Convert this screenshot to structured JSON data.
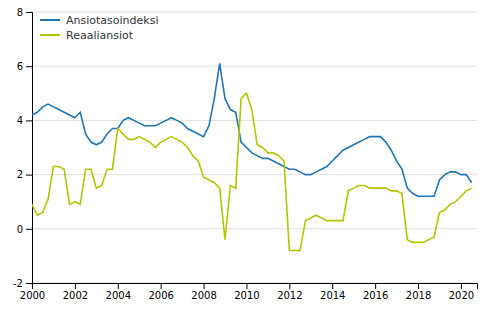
{
  "chart_data": {
    "type": "line",
    "x": [
      2000.0,
      2000.25,
      2000.5,
      2000.75,
      2001.0,
      2001.25,
      2001.5,
      2001.75,
      2002.0,
      2002.25,
      2002.5,
      2002.75,
      2003.0,
      2003.25,
      2003.5,
      2003.75,
      2004.0,
      2004.25,
      2004.5,
      2004.75,
      2005.0,
      2005.25,
      2005.5,
      2005.75,
      2006.0,
      2006.25,
      2006.5,
      2006.75,
      2007.0,
      2007.25,
      2007.5,
      2007.75,
      2008.0,
      2008.25,
      2008.5,
      2008.75,
      2009.0,
      2009.25,
      2009.5,
      2009.75,
      2010.0,
      2010.25,
      2010.5,
      2010.75,
      2011.0,
      2011.25,
      2011.5,
      2011.75,
      2012.0,
      2012.25,
      2012.5,
      2012.75,
      2013.0,
      2013.25,
      2013.5,
      2013.75,
      2014.0,
      2014.25,
      2014.5,
      2014.75,
      2015.0,
      2015.25,
      2015.5,
      2015.75,
      2016.0,
      2016.25,
      2016.5,
      2016.75,
      2017.0,
      2017.25,
      2017.5,
      2017.75,
      2018.0,
      2018.25,
      2018.5,
      2018.75,
      2019.0,
      2019.25,
      2019.5,
      2019.75,
      2020.0,
      2020.25,
      2020.5
    ],
    "series": [
      {
        "name": "Ansiotasoindeksi",
        "color": "#2175b5",
        "values": [
          4.2,
          4.3,
          4.5,
          4.6,
          4.5,
          4.4,
          4.3,
          4.2,
          4.1,
          4.3,
          3.5,
          3.2,
          3.1,
          3.2,
          3.5,
          3.7,
          3.7,
          4.0,
          4.1,
          4.0,
          3.9,
          3.8,
          3.8,
          3.8,
          3.9,
          4.0,
          4.1,
          4.0,
          3.9,
          3.7,
          3.6,
          3.5,
          3.4,
          3.8,
          4.8,
          6.1,
          4.8,
          4.4,
          4.3,
          3.2,
          3.0,
          2.8,
          2.7,
          2.6,
          2.6,
          2.5,
          2.4,
          2.3,
          2.2,
          2.2,
          2.1,
          2.0,
          2.0,
          2.1,
          2.2,
          2.3,
          2.5,
          2.7,
          2.9,
          3.0,
          3.1,
          3.2,
          3.3,
          3.4,
          3.4,
          3.4,
          3.2,
          2.9,
          2.5,
          2.2,
          1.5,
          1.3,
          1.2,
          1.2,
          1.2,
          1.2,
          1.8,
          2.0,
          2.1,
          2.1,
          2.0,
          2.0,
          1.7
        ]
      },
      {
        "name": "Reaaliansiot",
        "color": "#b5c400",
        "values": [
          0.9,
          0.5,
          0.6,
          1.1,
          2.3,
          2.3,
          2.2,
          0.9,
          1.0,
          0.9,
          2.2,
          2.2,
          1.5,
          1.6,
          2.2,
          2.2,
          3.7,
          3.5,
          3.3,
          3.3,
          3.4,
          3.3,
          3.2,
          3.0,
          3.2,
          3.3,
          3.4,
          3.3,
          3.2,
          3.0,
          2.7,
          2.5,
          1.9,
          1.8,
          1.7,
          1.5,
          -0.4,
          1.6,
          1.5,
          4.8,
          5.0,
          4.4,
          3.1,
          3.0,
          2.8,
          2.8,
          2.7,
          2.5,
          -0.8,
          -0.8,
          -0.8,
          0.3,
          0.4,
          0.5,
          0.4,
          0.3,
          0.3,
          0.3,
          0.3,
          1.4,
          1.5,
          1.6,
          1.6,
          1.5,
          1.5,
          1.5,
          1.5,
          1.4,
          1.4,
          1.3,
          -0.4,
          -0.5,
          -0.5,
          -0.5,
          -0.4,
          -0.3,
          0.6,
          0.7,
          0.9,
          1.0,
          1.2,
          1.4,
          1.5
        ]
      }
    ],
    "xlim": [
      2000,
      2020.75
    ],
    "xticks": [
      2000,
      2002,
      2004,
      2006,
      2008,
      2010,
      2012,
      2014,
      2016,
      2018,
      2020
    ],
    "ylim": [
      -2,
      8
    ],
    "yticks": [
      -2,
      0,
      2,
      4,
      6,
      8
    ],
    "grid": "y",
    "legend": "upper left"
  }
}
